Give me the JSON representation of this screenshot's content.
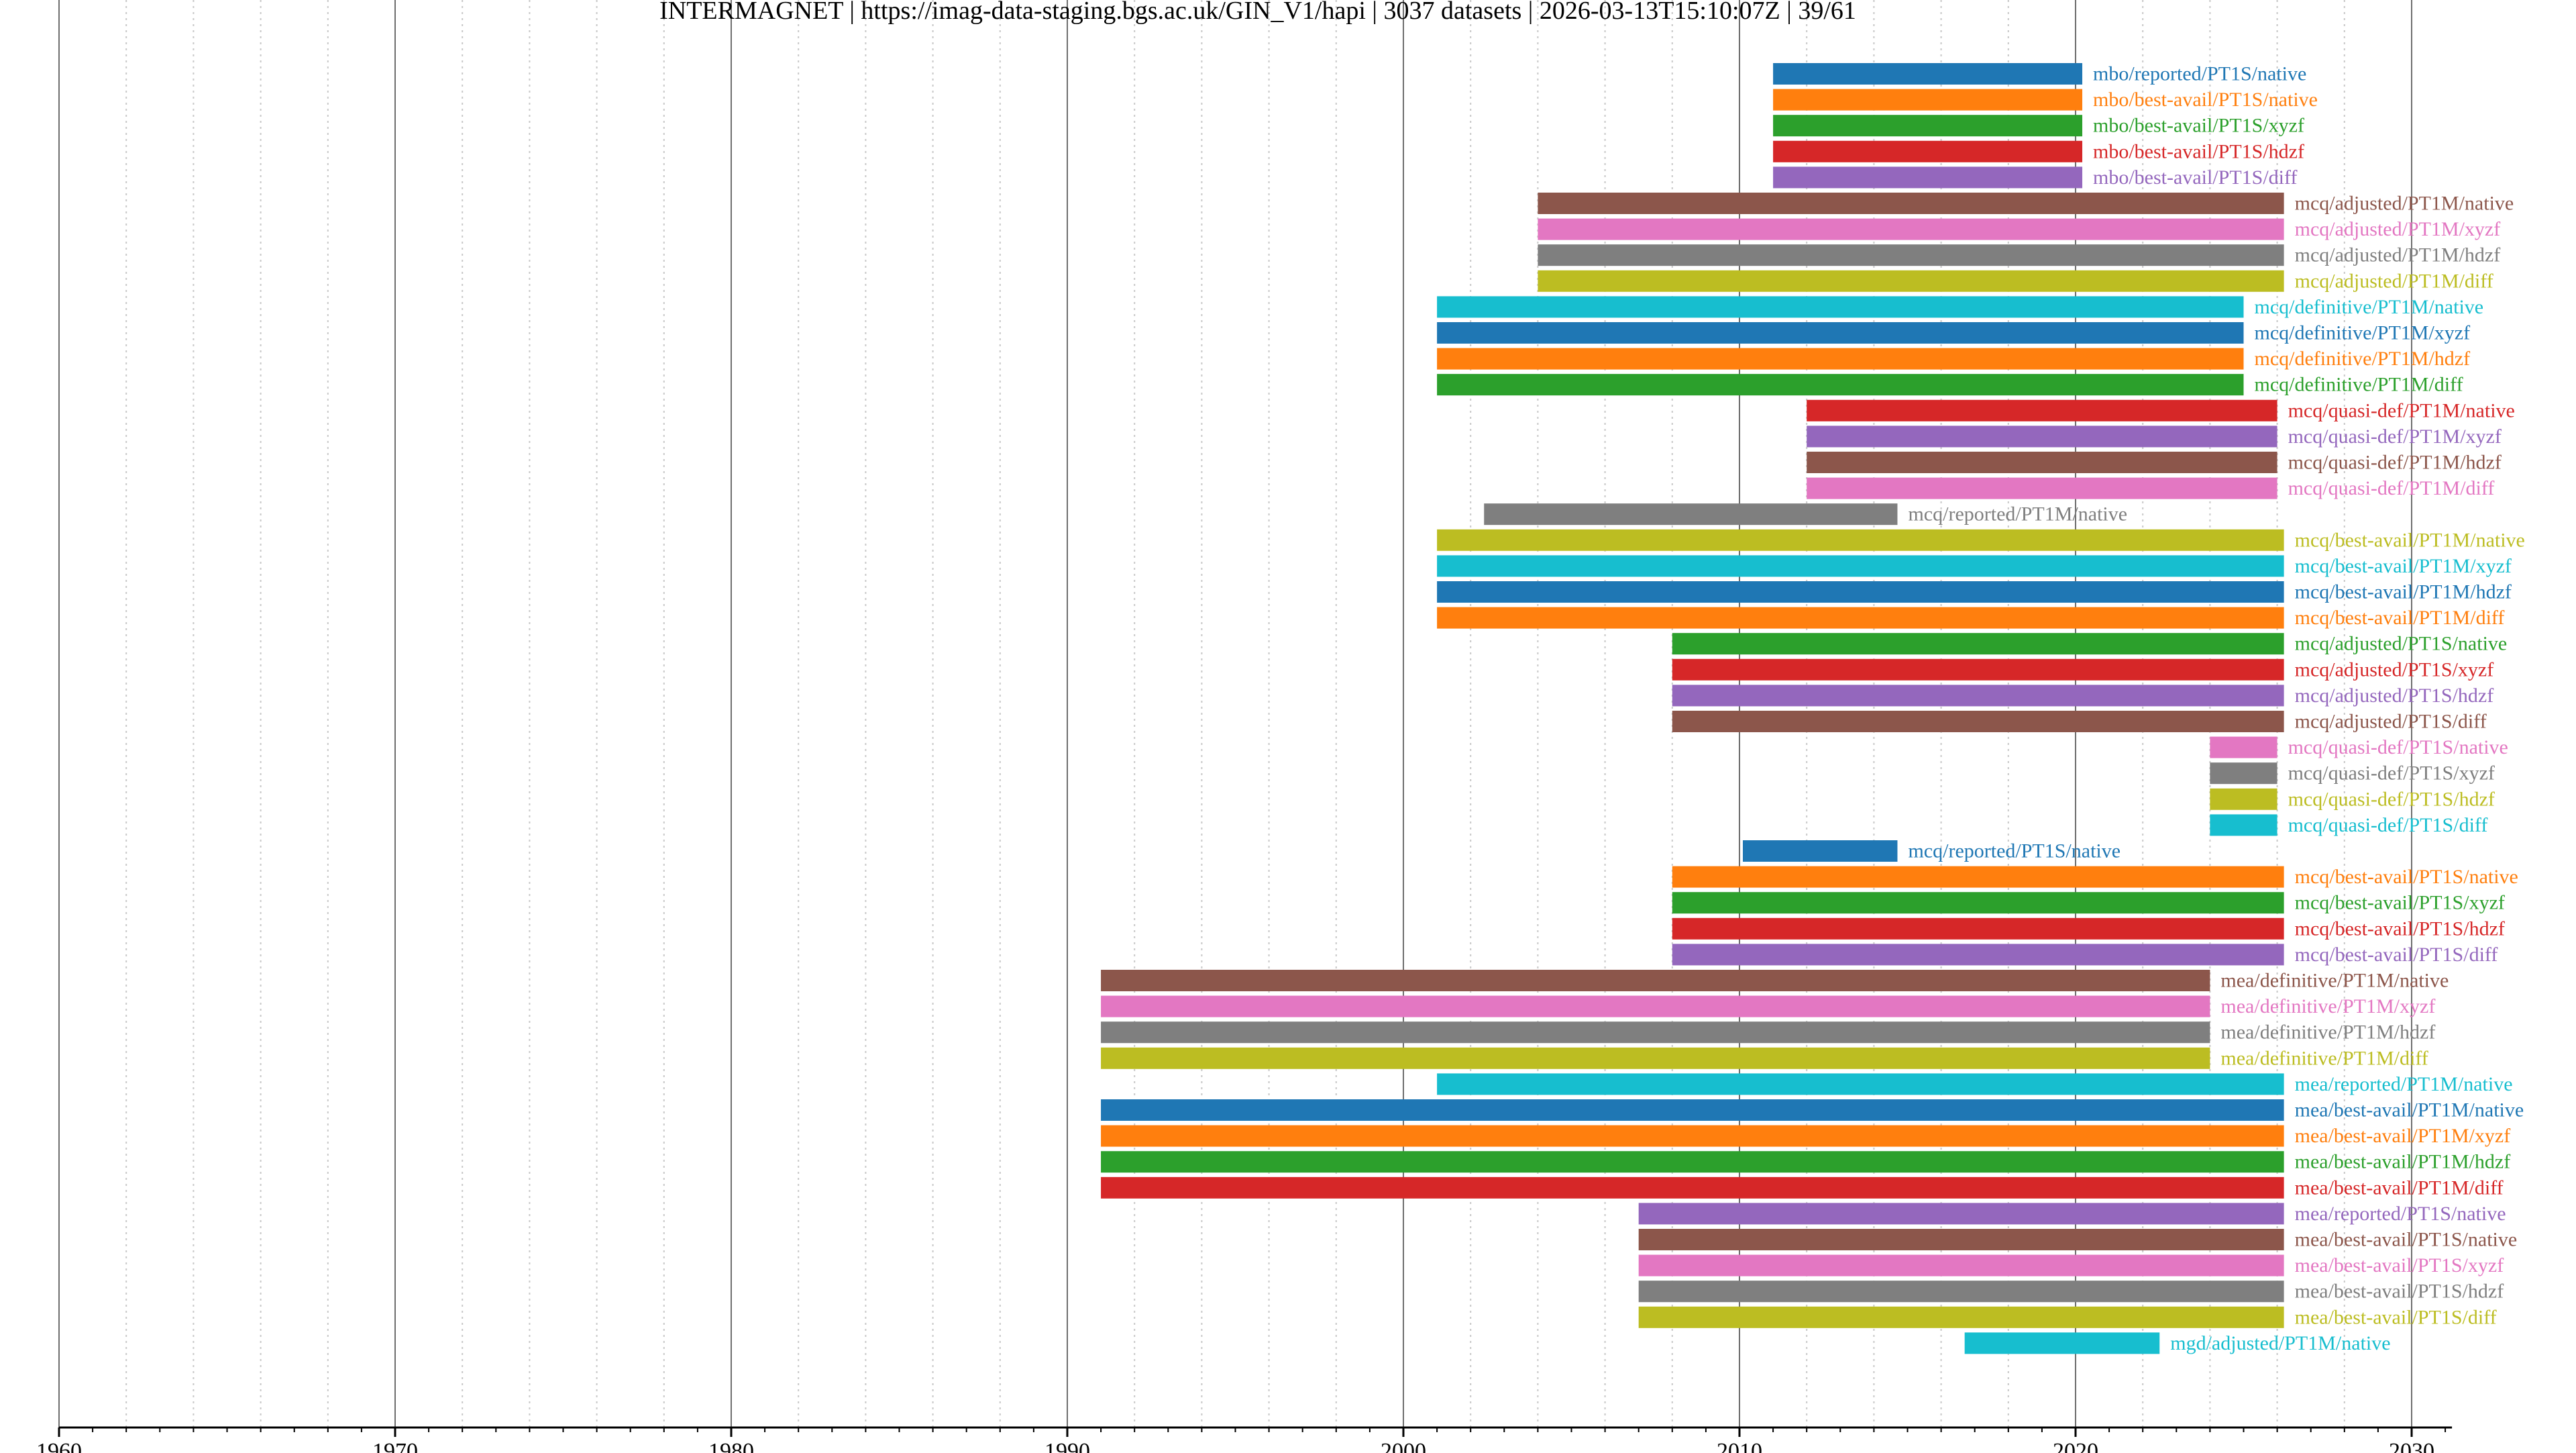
{
  "chart_data": {
    "type": "gantt",
    "title": "INTERMAGNET | https://imag-data-staging.bgs.ac.uk/GIN_V1/hapi | 3037 datasets | 2026-03-13T15:10:07Z | 39/61",
    "x_axis": {
      "min": 1960,
      "max": 2031.2,
      "major_ticks": [
        1960,
        1970,
        1980,
        1990,
        2000,
        2010,
        2020,
        2030
      ],
      "tick_labels": [
        "1960",
        "1970",
        "1980",
        "1990",
        "2000",
        "2010",
        "2020",
        "2030"
      ],
      "minor_tick_step": 1,
      "dotted_grid_step": 2,
      "grid": true
    },
    "series": [
      {
        "label": "mbo/reported/PT1S/native",
        "start": 2011.0,
        "end": 2020.2,
        "color": "#1f77b4"
      },
      {
        "label": "mbo/best-avail/PT1S/native",
        "start": 2011.0,
        "end": 2020.2,
        "color": "#ff7f0e"
      },
      {
        "label": "mbo/best-avail/PT1S/xyzf",
        "start": 2011.0,
        "end": 2020.2,
        "color": "#2ca02c"
      },
      {
        "label": "mbo/best-avail/PT1S/hdzf",
        "start": 2011.0,
        "end": 2020.2,
        "color": "#d62728"
      },
      {
        "label": "mbo/best-avail/PT1S/diff",
        "start": 2011.0,
        "end": 2020.2,
        "color": "#9467bd"
      },
      {
        "label": "mcq/adjusted/PT1M/native",
        "start": 2004.0,
        "end": 2026.2,
        "color": "#8c564b"
      },
      {
        "label": "mcq/adjusted/PT1M/xyzf",
        "start": 2004.0,
        "end": 2026.2,
        "color": "#e377c2"
      },
      {
        "label": "mcq/adjusted/PT1M/hdzf",
        "start": 2004.0,
        "end": 2026.2,
        "color": "#7f7f7f"
      },
      {
        "label": "mcq/adjusted/PT1M/diff",
        "start": 2004.0,
        "end": 2026.2,
        "color": "#bcbd22"
      },
      {
        "label": "mcq/definitive/PT1M/native",
        "start": 2001.0,
        "end": 2025.0,
        "color": "#17becf"
      },
      {
        "label": "mcq/definitive/PT1M/xyzf",
        "start": 2001.0,
        "end": 2025.0,
        "color": "#1f77b4"
      },
      {
        "label": "mcq/definitive/PT1M/hdzf",
        "start": 2001.0,
        "end": 2025.0,
        "color": "#ff7f0e"
      },
      {
        "label": "mcq/definitive/PT1M/diff",
        "start": 2001.0,
        "end": 2025.0,
        "color": "#2ca02c"
      },
      {
        "label": "mcq/quasi-def/PT1M/native",
        "start": 2012.0,
        "end": 2026.0,
        "color": "#d62728"
      },
      {
        "label": "mcq/quasi-def/PT1M/xyzf",
        "start": 2012.0,
        "end": 2026.0,
        "color": "#9467bd"
      },
      {
        "label": "mcq/quasi-def/PT1M/hdzf",
        "start": 2012.0,
        "end": 2026.0,
        "color": "#8c564b"
      },
      {
        "label": "mcq/quasi-def/PT1M/diff",
        "start": 2012.0,
        "end": 2026.0,
        "color": "#e377c2"
      },
      {
        "label": "mcq/reported/PT1M/native",
        "start": 2002.4,
        "end": 2014.7,
        "color": "#7f7f7f"
      },
      {
        "label": "mcq/best-avail/PT1M/native",
        "start": 2001.0,
        "end": 2026.2,
        "color": "#bcbd22"
      },
      {
        "label": "mcq/best-avail/PT1M/xyzf",
        "start": 2001.0,
        "end": 2026.2,
        "color": "#17becf"
      },
      {
        "label": "mcq/best-avail/PT1M/hdzf",
        "start": 2001.0,
        "end": 2026.2,
        "color": "#1f77b4"
      },
      {
        "label": "mcq/best-avail/PT1M/diff",
        "start": 2001.0,
        "end": 2026.2,
        "color": "#ff7f0e"
      },
      {
        "label": "mcq/adjusted/PT1S/native",
        "start": 2008.0,
        "end": 2026.2,
        "color": "#2ca02c"
      },
      {
        "label": "mcq/adjusted/PT1S/xyzf",
        "start": 2008.0,
        "end": 2026.2,
        "color": "#d62728"
      },
      {
        "label": "mcq/adjusted/PT1S/hdzf",
        "start": 2008.0,
        "end": 2026.2,
        "color": "#9467bd"
      },
      {
        "label": "mcq/adjusted/PT1S/diff",
        "start": 2008.0,
        "end": 2026.2,
        "color": "#8c564b"
      },
      {
        "label": "mcq/quasi-def/PT1S/native",
        "start": 2024.0,
        "end": 2026.0,
        "color": "#e377c2"
      },
      {
        "label": "mcq/quasi-def/PT1S/xyzf",
        "start": 2024.0,
        "end": 2026.0,
        "color": "#7f7f7f"
      },
      {
        "label": "mcq/quasi-def/PT1S/hdzf",
        "start": 2024.0,
        "end": 2026.0,
        "color": "#bcbd22"
      },
      {
        "label": "mcq/quasi-def/PT1S/diff",
        "start": 2024.0,
        "end": 2026.0,
        "color": "#17becf"
      },
      {
        "label": "mcq/reported/PT1S/native",
        "start": 2010.1,
        "end": 2014.7,
        "color": "#1f77b4"
      },
      {
        "label": "mcq/best-avail/PT1S/native",
        "start": 2008.0,
        "end": 2026.2,
        "color": "#ff7f0e"
      },
      {
        "label": "mcq/best-avail/PT1S/xyzf",
        "start": 2008.0,
        "end": 2026.2,
        "color": "#2ca02c"
      },
      {
        "label": "mcq/best-avail/PT1S/hdzf",
        "start": 2008.0,
        "end": 2026.2,
        "color": "#d62728"
      },
      {
        "label": "mcq/best-avail/PT1S/diff",
        "start": 2008.0,
        "end": 2026.2,
        "color": "#9467bd"
      },
      {
        "label": "mea/definitive/PT1M/native",
        "start": 1991.0,
        "end": 2024.0,
        "color": "#8c564b"
      },
      {
        "label": "mea/definitive/PT1M/xyzf",
        "start": 1991.0,
        "end": 2024.0,
        "color": "#e377c2"
      },
      {
        "label": "mea/definitive/PT1M/hdzf",
        "start": 1991.0,
        "end": 2024.0,
        "color": "#7f7f7f"
      },
      {
        "label": "mea/definitive/PT1M/diff",
        "start": 1991.0,
        "end": 2024.0,
        "color": "#bcbd22"
      },
      {
        "label": "mea/reported/PT1M/native",
        "start": 2001.0,
        "end": 2026.2,
        "color": "#17becf"
      },
      {
        "label": "mea/best-avail/PT1M/native",
        "start": 1991.0,
        "end": 2026.2,
        "color": "#1f77b4"
      },
      {
        "label": "mea/best-avail/PT1M/xyzf",
        "start": 1991.0,
        "end": 2026.2,
        "color": "#ff7f0e"
      },
      {
        "label": "mea/best-avail/PT1M/hdzf",
        "start": 1991.0,
        "end": 2026.2,
        "color": "#2ca02c"
      },
      {
        "label": "mea/best-avail/PT1M/diff",
        "start": 1991.0,
        "end": 2026.2,
        "color": "#d62728"
      },
      {
        "label": "mea/reported/PT1S/native",
        "start": 2007.0,
        "end": 2026.2,
        "color": "#9467bd"
      },
      {
        "label": "mea/best-avail/PT1S/native",
        "start": 2007.0,
        "end": 2026.2,
        "color": "#8c564b"
      },
      {
        "label": "mea/best-avail/PT1S/xyzf",
        "start": 2007.0,
        "end": 2026.2,
        "color": "#e377c2"
      },
      {
        "label": "mea/best-avail/PT1S/hdzf",
        "start": 2007.0,
        "end": 2026.2,
        "color": "#7f7f7f"
      },
      {
        "label": "mea/best-avail/PT1S/diff",
        "start": 2007.0,
        "end": 2026.2,
        "color": "#bcbd22"
      },
      {
        "label": "mgd/adjusted/PT1M/native",
        "start": 2016.7,
        "end": 2022.5,
        "color": "#17becf"
      }
    ]
  }
}
